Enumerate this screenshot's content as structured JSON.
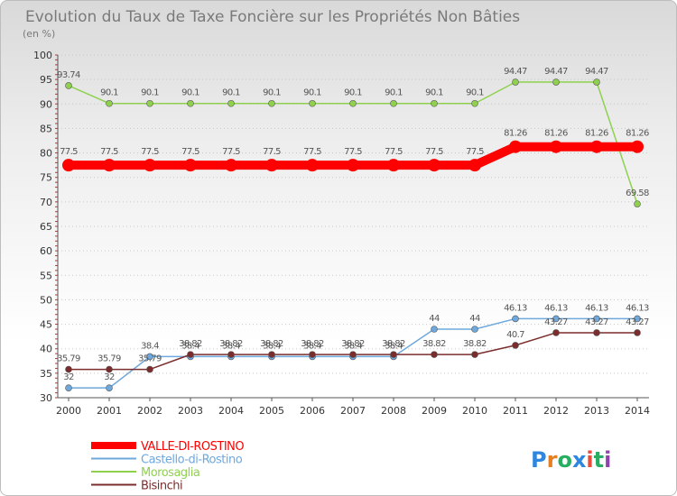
{
  "chart_data": {
    "type": "line",
    "title": "Evolution du Taux de Taxe Foncière sur les Propriétés Non Bâties",
    "subtitle": "(en %)",
    "ylim": [
      30,
      100
    ],
    "y_ticks": [
      "30",
      "35",
      "40",
      "45",
      "50",
      "55",
      "60",
      "65",
      "70",
      "75",
      "80",
      "85",
      "90",
      "95",
      "100"
    ],
    "categories": [
      "2000",
      "2001",
      "2002",
      "2003",
      "2004",
      "2005",
      "2006",
      "2007",
      "2008",
      "2009",
      "2010",
      "2011",
      "2012",
      "2013",
      "2014"
    ],
    "series": [
      {
        "name": "VALLE-DI-ROSTINO",
        "color": "#ff0000",
        "values": [
          77.5,
          77.5,
          77.5,
          77.5,
          77.5,
          77.5,
          77.5,
          77.5,
          77.5,
          77.5,
          77.5,
          81.26,
          81.26,
          81.26,
          81.26
        ],
        "labels": [
          "77.5",
          "77.5",
          "77.5",
          "77.5",
          "77.5",
          "77.5",
          "77.5",
          "77.5",
          "77.5",
          "77.5",
          "77.5",
          "81.26",
          "81.26",
          "81.26",
          "81.26"
        ]
      },
      {
        "name": "Castello-di-Rostino",
        "color": "#6fa8dc",
        "values": [
          32,
          32,
          38.4,
          38.4,
          38.4,
          38.4,
          38.4,
          38.4,
          38.4,
          44,
          44,
          46.13,
          46.13,
          46.13,
          46.13
        ],
        "labels": [
          "32",
          "32",
          "38.4",
          "38.4",
          "38.4",
          "38.4",
          "38.4",
          "38.4",
          "38.4",
          "44",
          "44",
          "46.13",
          "46.13",
          "46.13",
          "46.13"
        ]
      },
      {
        "name": "Morosaglia",
        "color": "#8fd14f",
        "values": [
          93.74,
          90.1,
          90.1,
          90.1,
          90.1,
          90.1,
          90.1,
          90.1,
          90.1,
          90.1,
          90.1,
          94.47,
          94.47,
          94.47,
          69.58
        ],
        "labels": [
          "93.74",
          "90.1",
          "90.1",
          "90.1",
          "90.1",
          "90.1",
          "90.1",
          "90.1",
          "90.1",
          "90.1",
          "90.1",
          "94.47",
          "94.47",
          "94.47",
          "69.58"
        ]
      },
      {
        "name": "Bisinchi",
        "color": "#7b2c2c",
        "values": [
          35.79,
          35.79,
          35.79,
          38.82,
          38.82,
          38.82,
          38.82,
          38.82,
          38.82,
          38.82,
          38.82,
          40.7,
          43.27,
          43.27,
          43.27
        ],
        "labels": [
          "35.79",
          "35.79",
          "35.79",
          "38.82",
          "38.82",
          "38.82",
          "38.82",
          "38.82",
          "38.82",
          "38.82",
          "38.82",
          "40.7",
          "43.27",
          "43.27",
          "43.27"
        ]
      }
    ],
    "legend_position": "bottom-left",
    "grid": "horizontal-dotted"
  },
  "logo": {
    "letters": [
      "P",
      "r",
      "o",
      "x",
      "i",
      "t",
      "i"
    ],
    "colors": [
      "#2e86de",
      "#e67e22",
      "#27ae60",
      "#2e86de",
      "#e74c3c",
      "#27ae60",
      "#8e44ad"
    ]
  }
}
